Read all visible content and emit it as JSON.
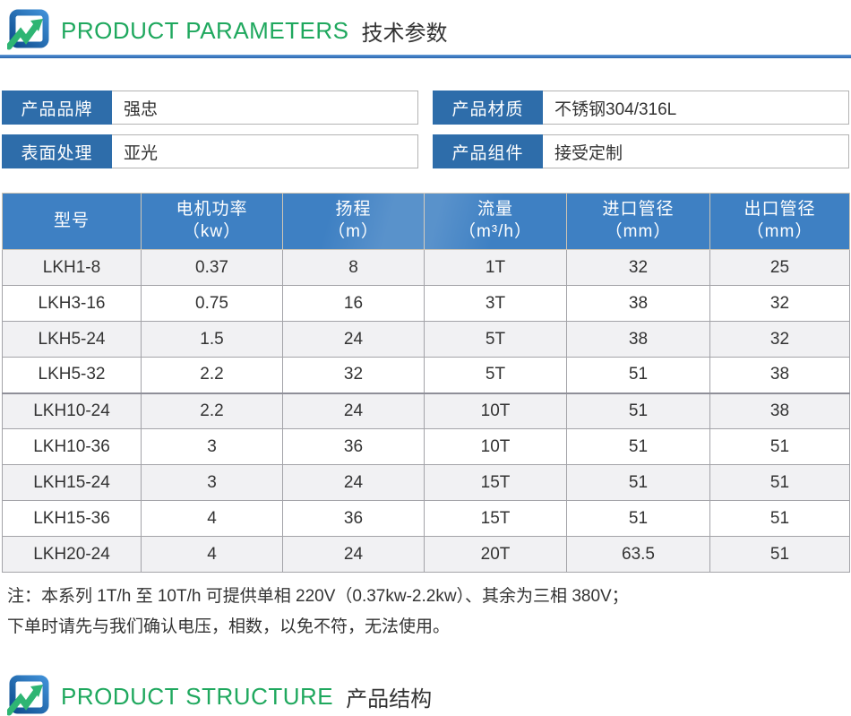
{
  "colors": {
    "accent_green": "#1fa85e",
    "table_header_blue": "#3e80c3",
    "label_blue": "#2e6daa",
    "divider_blue": "#3a78c0"
  },
  "section_parameters": {
    "title_en": "PRODUCT PARAMETERS",
    "title_zh": "技术参数"
  },
  "section_structure": {
    "title_en": "PRODUCT STRUCTURE",
    "title_zh": "产品结构"
  },
  "info_fields": {
    "brand": {
      "label": "产品品牌",
      "value": "强忠"
    },
    "material": {
      "label": "产品材质",
      "value": "不锈钢304/316L"
    },
    "finish": {
      "label": "表面处理",
      "value": "亚光"
    },
    "component": {
      "label": "产品组件",
      "value": "接受定制"
    }
  },
  "spec_table": {
    "headers": [
      {
        "line1": "型号",
        "line2": ""
      },
      {
        "line1": "电机功率",
        "line2": "（kw）"
      },
      {
        "line1": "扬程",
        "line2": "（m）"
      },
      {
        "line1": "流量",
        "line2": "（m³/h）"
      },
      {
        "line1": "进口管径",
        "line2": "（mm）"
      },
      {
        "line1": "出口管径",
        "line2": "（mm）"
      }
    ],
    "rows": [
      [
        "LKH1-8",
        "0.37",
        "8",
        "1T",
        "32",
        "25"
      ],
      [
        "LKH3-16",
        "0.75",
        "16",
        "3T",
        "38",
        "32"
      ],
      [
        "LKH5-24",
        "1.5",
        "24",
        "5T",
        "38",
        "32"
      ],
      [
        "LKH5-32",
        "2.2",
        "32",
        "5T",
        "51",
        "38"
      ],
      [
        "LKH10-24",
        "2.2",
        "24",
        "10T",
        "51",
        "38"
      ],
      [
        "LKH10-36",
        "3",
        "36",
        "10T",
        "51",
        "51"
      ],
      [
        "LKH15-24",
        "3",
        "24",
        "15T",
        "51",
        "51"
      ],
      [
        "LKH15-36",
        "4",
        "36",
        "15T",
        "51",
        "51"
      ],
      [
        "LKH20-24",
        "4",
        "24",
        "20T",
        "63.5",
        "51"
      ]
    ]
  },
  "note": {
    "line1": "注：本系列 1T/h 至 10T/h 可提供单相 220V（0.37kw-2.2kw）、其余为三相 380V；",
    "line2": "下单时请先与我们确认电压，相数，以免不符，无法使用。"
  }
}
